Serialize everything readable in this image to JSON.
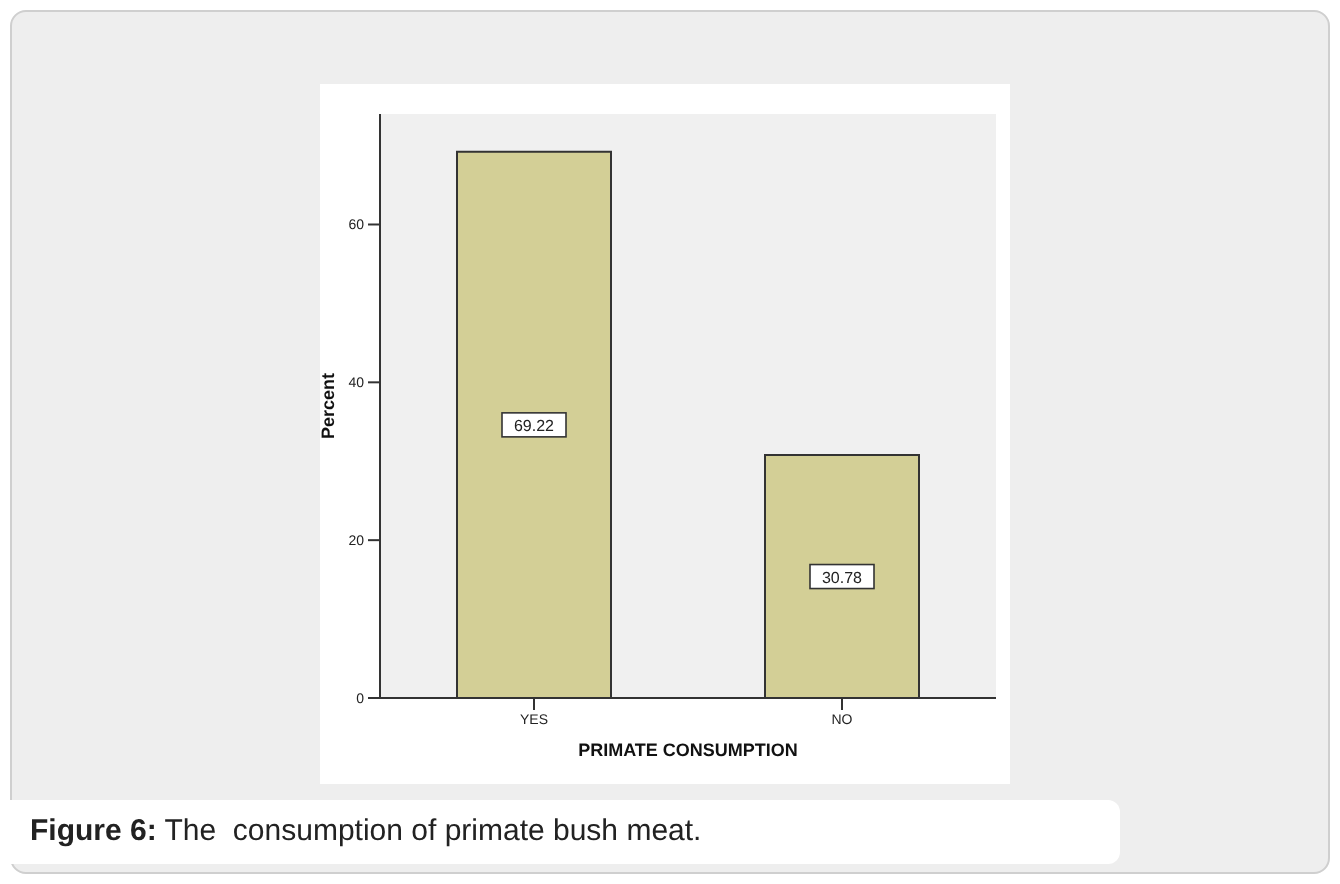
{
  "chart_data": {
    "type": "bar",
    "categories": [
      "YES",
      "NO"
    ],
    "values": [
      69.22,
      30.78
    ],
    "color": "#d3cf96",
    "xlabel": "PRIMATE CONSUMPTION",
    "ylabel": "Percent",
    "ylim": [
      0,
      74
    ],
    "yticks": [
      0,
      20,
      40,
      60
    ],
    "data_labels": true,
    "grid": false,
    "legend": false,
    "annotations": [
      "Figure 6: The  consumption of primate bush meat."
    ]
  }
}
